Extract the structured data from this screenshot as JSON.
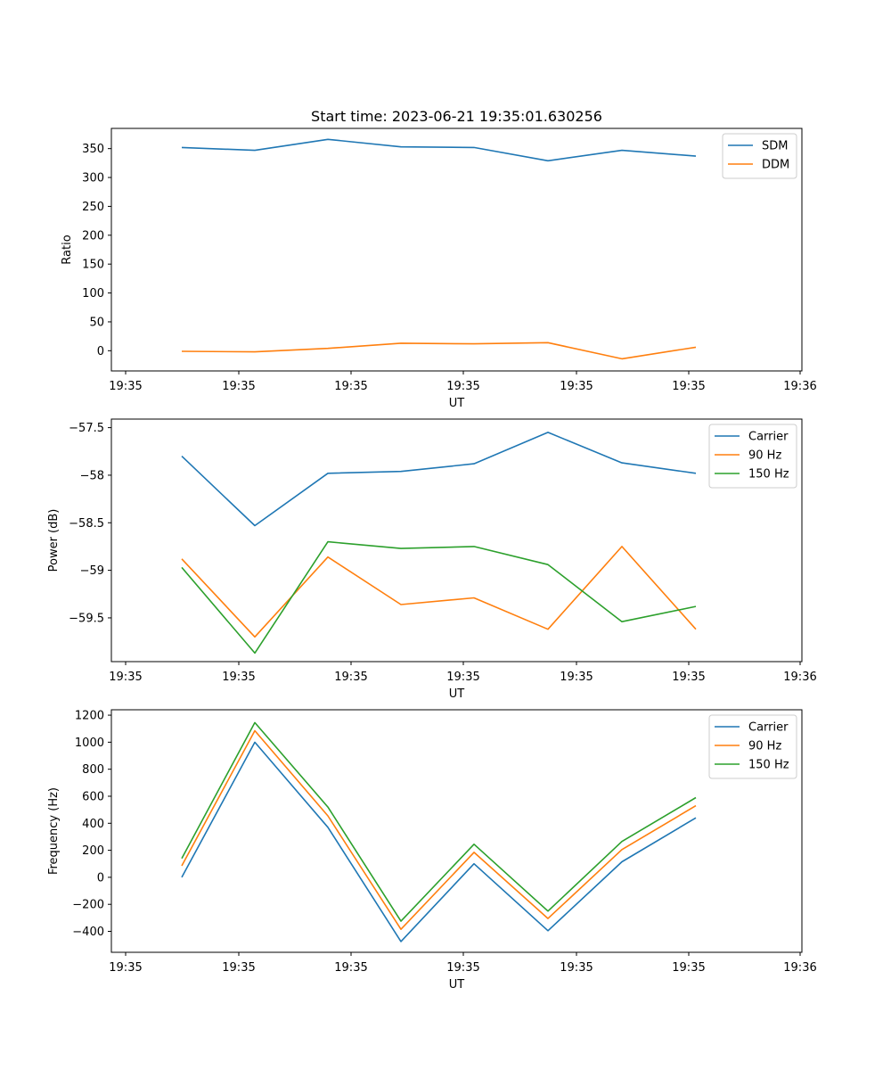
{
  "chart_data": [
    {
      "type": "line",
      "title": "Start time: 2023-06-21 19:35:01.630256",
      "xlabel": "UT",
      "ylabel": "Ratio",
      "x_tick_labels": [
        "19:35",
        "19:35",
        "19:35",
        "19:35",
        "19:35",
        "19:35",
        "19:36"
      ],
      "ylim": [
        -35,
        385
      ],
      "yticks": [
        0,
        50,
        100,
        150,
        200,
        250,
        300,
        350
      ],
      "legend_position": "top-right",
      "grid": false,
      "series": [
        {
          "name": "SDM",
          "color": "#1f77b4",
          "values": [
            352,
            347,
            366,
            353,
            352,
            329,
            347,
            337
          ]
        },
        {
          "name": "DDM",
          "color": "#ff7f0e",
          "values": [
            -1,
            -2,
            4,
            13,
            12,
            14,
            -14,
            6
          ]
        }
      ]
    },
    {
      "type": "line",
      "title": "",
      "xlabel": "UT",
      "ylabel": "Power (dB)",
      "x_tick_labels": [
        "19:35",
        "19:35",
        "19:35",
        "19:35",
        "19:35",
        "19:35",
        "19:36"
      ],
      "ylim": [
        -59.96,
        -57.41
      ],
      "yticks": [
        -59.5,
        -59.0,
        -58.5,
        -58.0,
        -57.5
      ],
      "legend_position": "top-right",
      "grid": false,
      "series": [
        {
          "name": "Carrier",
          "color": "#1f77b4",
          "values": [
            -57.8,
            -58.53,
            -57.98,
            -57.96,
            -57.88,
            -57.55,
            -57.87,
            -57.98
          ]
        },
        {
          "name": "90 Hz",
          "color": "#ff7f0e",
          "values": [
            -58.88,
            -59.7,
            -58.86,
            -59.36,
            -59.29,
            -59.62,
            -58.75,
            -59.62
          ]
        },
        {
          "name": "150 Hz",
          "color": "#2ca02c",
          "values": [
            -58.97,
            -59.87,
            -58.7,
            -58.77,
            -58.75,
            -58.94,
            -59.54,
            -59.38
          ]
        }
      ]
    },
    {
      "type": "line",
      "title": "",
      "xlabel": "UT",
      "ylabel": "Frequency (Hz)",
      "x_tick_labels": [
        "19:35",
        "19:35",
        "19:35",
        "19:35",
        "19:35",
        "19:35",
        "19:36"
      ],
      "ylim": [
        -555,
        1240
      ],
      "yticks": [
        -400,
        -200,
        0,
        200,
        400,
        600,
        800,
        1000,
        1200
      ],
      "legend_position": "top-right",
      "grid": false,
      "series": [
        {
          "name": "Carrier",
          "color": "#1f77b4",
          "values": [
            0,
            1000,
            370,
            -475,
            100,
            -395,
            115,
            440
          ]
        },
        {
          "name": "90 Hz",
          "color": "#ff7f0e",
          "values": [
            85,
            1085,
            455,
            -385,
            185,
            -305,
            205,
            530
          ]
        },
        {
          "name": "150 Hz",
          "color": "#2ca02c",
          "values": [
            140,
            1145,
            520,
            -325,
            245,
            -250,
            265,
            590
          ]
        }
      ]
    }
  ]
}
